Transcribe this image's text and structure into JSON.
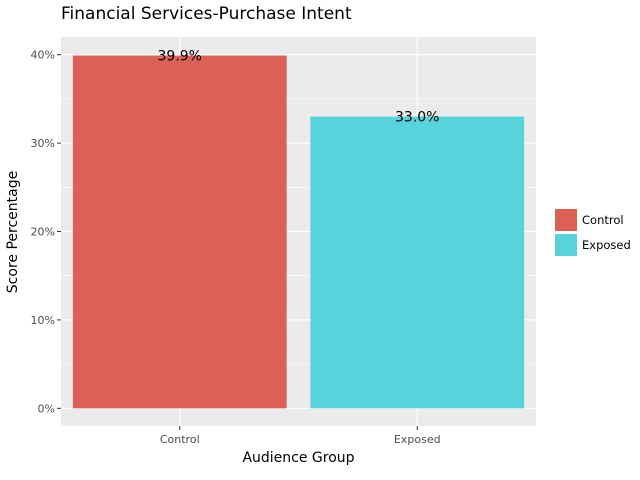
{
  "chart_data": {
    "type": "bar",
    "title": "Financial Services-Purchase Intent",
    "xlabel": "Audience Group",
    "ylabel": "Score Percentage",
    "categories": [
      "Control",
      "Exposed"
    ],
    "values": [
      39.9,
      33.0
    ],
    "value_labels": [
      "39.9%",
      "33.0%"
    ],
    "colors": [
      "#db6157",
      "#57d3db"
    ],
    "ylim": [
      -2,
      42
    ],
    "yticks": [
      0,
      10,
      20,
      30,
      40
    ],
    "ytick_labels": [
      "0%",
      "10%",
      "20%",
      "30%",
      "40%"
    ],
    "grid": true,
    "legend": {
      "position": "right",
      "entries": [
        "Control",
        "Exposed"
      ]
    },
    "background": "#ebebeb"
  }
}
